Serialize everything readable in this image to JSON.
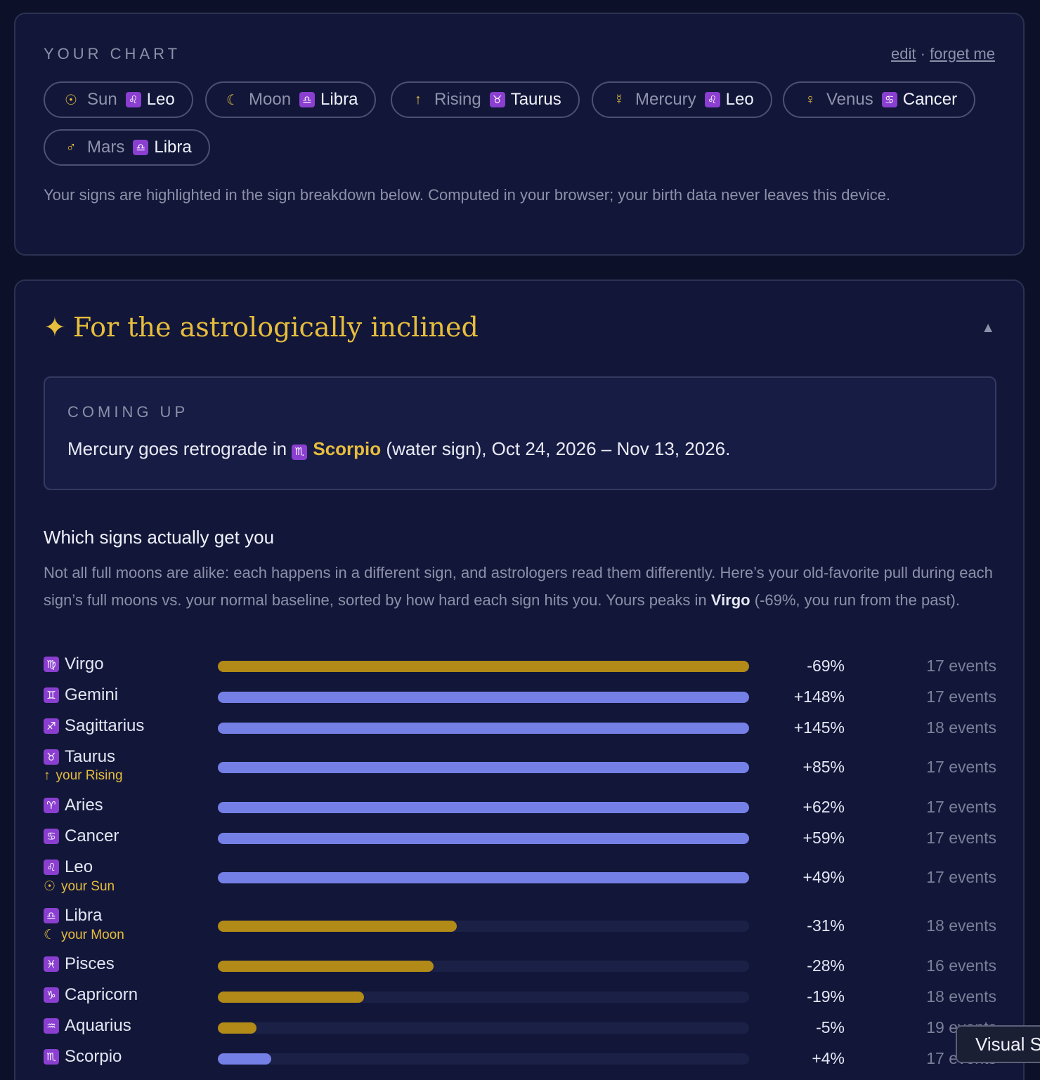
{
  "chart": {
    "kicker": "YOUR CHART",
    "edit_label": "edit",
    "separator": "·",
    "forget_label": "forget me",
    "placements": [
      {
        "icon": "☉",
        "planet": "Sun",
        "glyph": "♌",
        "sign": "Leo"
      },
      {
        "icon": "☾",
        "planet": "Moon",
        "glyph": "♎",
        "sign": "Libra"
      },
      {
        "icon": "↑",
        "planet": "Rising",
        "glyph": "♉",
        "sign": "Taurus"
      },
      {
        "icon": "☿",
        "planet": "Mercury",
        "glyph": "♌",
        "sign": "Leo"
      },
      {
        "icon": "♀",
        "planet": "Venus",
        "glyph": "♋",
        "sign": "Cancer"
      },
      {
        "icon": "♂",
        "planet": "Mars",
        "glyph": "♎",
        "sign": "Libra"
      }
    ],
    "note": "Your signs are highlighted in the sign breakdown below. Computed in your browser; your birth data never leaves this device."
  },
  "astro": {
    "star": "✦",
    "title": "For the astrologically inclined",
    "collapse_icon": "▲",
    "coming": {
      "kicker": "COMING UP",
      "prefix": "Mercury goes retrograde in",
      "glyph": "♏",
      "sign": "Scorpio",
      "suffix": "(water sign), Oct 24, 2026 – Nov 13, 2026."
    },
    "section_title": "Which signs actually get you",
    "desc_prefix": "Not all full moons are alike: each happens in a different sign, and astrologers read them differently. Here’s your old-favorite pull during each sign’s full moons vs. your normal baseline, sorted by how hard each sign hits you. Yours peaks in",
    "desc_peak": "Virgo",
    "desc_suffix": "(-69%, you run from the past).",
    "colors": {
      "negative": "#b18a17",
      "positive": "#7580e6",
      "accent": "#e7bd3c"
    },
    "signs": [
      {
        "glyph": "♍",
        "name": "Virgo",
        "pct": "-69%",
        "value": -69,
        "events": "17 events",
        "tag_icon": "",
        "tag": ""
      },
      {
        "glyph": "♊",
        "name": "Gemini",
        "pct": "+148%",
        "value": 148,
        "events": "17 events",
        "tag_icon": "",
        "tag": ""
      },
      {
        "glyph": "♐",
        "name": "Sagittarius",
        "pct": "+145%",
        "value": 145,
        "events": "18 events",
        "tag_icon": "",
        "tag": ""
      },
      {
        "glyph": "♉",
        "name": "Taurus",
        "pct": "+85%",
        "value": 85,
        "events": "17 events",
        "tag_icon": "↑",
        "tag": "your Rising"
      },
      {
        "glyph": "♈",
        "name": "Aries",
        "pct": "+62%",
        "value": 62,
        "events": "17 events",
        "tag_icon": "",
        "tag": ""
      },
      {
        "glyph": "♋",
        "name": "Cancer",
        "pct": "+59%",
        "value": 59,
        "events": "17 events",
        "tag_icon": "",
        "tag": ""
      },
      {
        "glyph": "♌",
        "name": "Leo",
        "pct": "+49%",
        "value": 49,
        "events": "17 events",
        "tag_icon": "☉",
        "tag": "your Sun"
      },
      {
        "glyph": "♎",
        "name": "Libra",
        "pct": "-31%",
        "value": -31,
        "events": "18 events",
        "tag_icon": "☾",
        "tag": "your Moon"
      },
      {
        "glyph": "♓",
        "name": "Pisces",
        "pct": "-28%",
        "value": -28,
        "events": "16 events",
        "tag_icon": "",
        "tag": ""
      },
      {
        "glyph": "♑",
        "name": "Capricorn",
        "pct": "-19%",
        "value": -19,
        "events": "18 events",
        "tag_icon": "",
        "tag": ""
      },
      {
        "glyph": "♒",
        "name": "Aquarius",
        "pct": "-5%",
        "value": -5,
        "events": "19 events",
        "tag_icon": "",
        "tag": ""
      },
      {
        "glyph": "♏",
        "name": "Scorpio",
        "pct": "+4%",
        "value": 4,
        "events": "17 events",
        "tag_icon": "",
        "tag": ""
      }
    ]
  },
  "tooltip": "Visual S"
}
